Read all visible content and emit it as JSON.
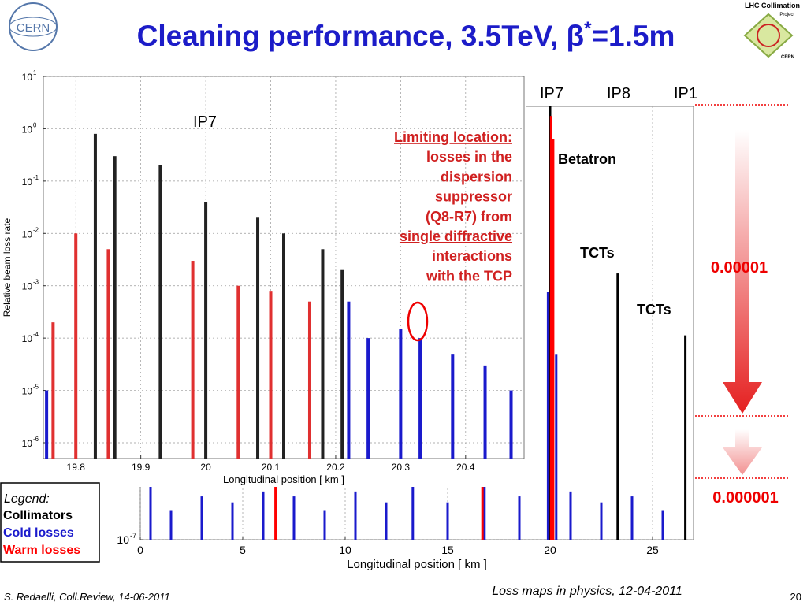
{
  "title": {
    "main": "Cleaning performance, 3.5TeV, β",
    "sup": "*",
    "rest": "=1.5m"
  },
  "logos": {
    "cern": "CERN",
    "lhc": "LHC Collimation",
    "lhc_sub": "Project",
    "lhc_org": "CERN"
  },
  "chart_data": [
    {
      "type": "bar",
      "title": "IP7",
      "x_label": "Longitudinal position [ km ]",
      "y_label": "Relative beam loss rate",
      "log_y": true,
      "xlim": [
        19.75,
        20.49
      ],
      "ylim": [
        5e-07,
        10
      ],
      "xticks": [
        19.8,
        19.9,
        20,
        20.1,
        20.2,
        20.3,
        20.4
      ],
      "yticks": [
        {
          "value": 10,
          "label": "10",
          "exponent": "1"
        },
        {
          "value": 1,
          "label": "10",
          "exponent": "0"
        },
        {
          "value": 0.1,
          "label": "10",
          "exponent": "-1"
        },
        {
          "value": 0.01,
          "label": "10",
          "exponent": "-2"
        },
        {
          "value": 0.001,
          "label": "10",
          "exponent": "-3"
        },
        {
          "value": 0.0001,
          "label": "10",
          "exponent": "-4"
        },
        {
          "value": 1e-05,
          "label": "10",
          "exponent": "-5"
        },
        {
          "value": 1e-06,
          "label": "10",
          "exponent": "-6"
        }
      ],
      "grid": true,
      "series": [
        {
          "color": "#222222",
          "x": [
            19.83,
            19.86,
            19.93,
            20.0,
            20.08,
            20.12,
            20.18,
            20.21
          ],
          "values": [
            0.8,
            0.3,
            0.2,
            0.04,
            0.02,
            0.01,
            0.005,
            0.002
          ]
        },
        {
          "color": "#1a1acc",
          "x": [
            19.755,
            20.22,
            20.25,
            20.3,
            20.33,
            20.38,
            20.43,
            20.47
          ],
          "values": [
            1e-05,
            0.0005,
            0.0001,
            0.00015,
            0.0001,
            5e-05,
            3e-05,
            1e-05
          ]
        },
        {
          "color": "#e03030",
          "x": [
            19.765,
            19.8,
            19.85,
            19.98,
            20.05,
            20.1,
            20.16
          ],
          "values": [
            0.0002,
            0.01,
            0.005,
            0.003,
            0.001,
            0.0008,
            0.0005
          ]
        }
      ]
    },
    {
      "type": "bar",
      "x_label": "Longitudinal position [ km ]",
      "log_y": true,
      "xlim": [
        0,
        27
      ],
      "ylim": [
        1e-07,
        1
      ],
      "xticks": [
        0,
        5,
        10,
        15,
        20,
        25
      ],
      "yticks": [
        {
          "value": 1e-07,
          "label": "10",
          "exponent": "-7"
        }
      ],
      "grid": true,
      "series": [
        {
          "name": "Collimators",
          "color": "#000000",
          "x": [
            20.0,
            23.3,
            26.6
          ],
          "values": [
            1,
            0.002,
            0.0002
          ]
        },
        {
          "name": "Cold losses",
          "color": "#1a1acc",
          "x": [
            0.5,
            1.5,
            3,
            4.5,
            6,
            7.5,
            9,
            10.5,
            12,
            13.3,
            15,
            16.8,
            18.5,
            19.9,
            20.3,
            21,
            22.5,
            24,
            25.5
          ],
          "values": [
            8e-07,
            3e-07,
            5e-07,
            4e-07,
            6e-07,
            5e-07,
            3e-07,
            6e-07,
            4e-07,
            8e-07,
            4e-07,
            8e-07,
            5e-07,
            0.001,
            0.0001,
            6e-07,
            4e-07,
            5e-07,
            3e-07
          ]
        },
        {
          "name": "Warm losses",
          "color": "#ff0000",
          "x": [
            6.6,
            16.7,
            20.05,
            20.15
          ],
          "values": [
            8e-07,
            8e-07,
            0.7,
            0.3
          ]
        }
      ]
    }
  ],
  "annotations": {
    "ip_labels": [
      "IP7",
      "IP8",
      "IP1"
    ],
    "betatron": "Betatron",
    "tcts_1": "TCTs",
    "tcts_2": "TCTs",
    "factor_1": "0.00001",
    "factor_2": "0.000001",
    "limiting": [
      "Limiting location:",
      "losses in the",
      "dispersion",
      "suppressor",
      "(Q8-R7) from",
      "single diffractive",
      "interactions",
      "with the TCP"
    ]
  },
  "legend": {
    "title": "Legend:"
  },
  "footer": {
    "left": "S. Redaelli, Coll.Review, 14-06-2011",
    "center": "Loss maps in physics, 12-04-2011",
    "page": "20"
  }
}
